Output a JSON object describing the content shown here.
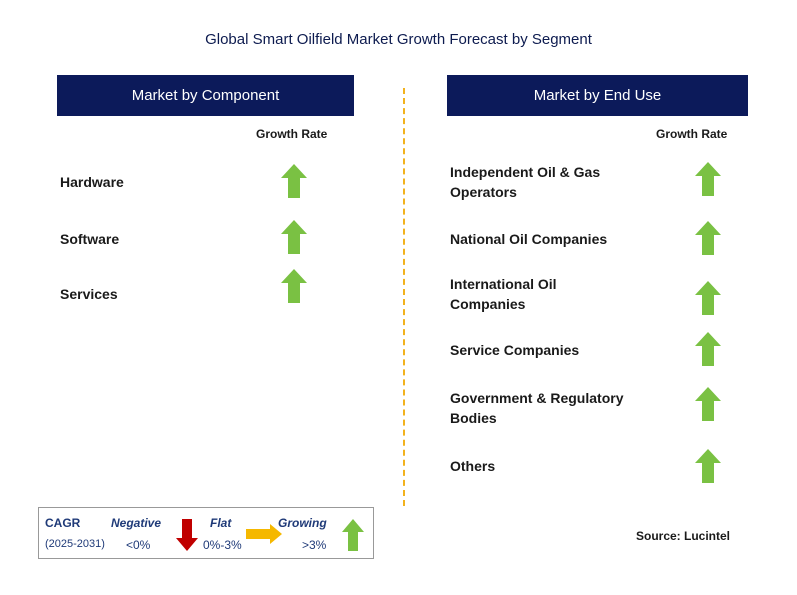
{
  "title": "Global Smart Oilfield Market Growth Forecast by Segment",
  "left_panel": {
    "header": "Market by Component",
    "growth_rate_label": "Growth Rate",
    "items": [
      {
        "label": "Hardware",
        "trend": "growing"
      },
      {
        "label": "Software",
        "trend": "growing"
      },
      {
        "label": "Services",
        "trend": "growing"
      }
    ]
  },
  "right_panel": {
    "header": "Market by End Use",
    "growth_rate_label": "Growth Rate",
    "items": [
      {
        "label_line1": "Independent Oil & Gas",
        "label_line2": "Operators",
        "trend": "growing"
      },
      {
        "label_line1": "National Oil Companies",
        "label_line2": "",
        "trend": "growing"
      },
      {
        "label_line1": "International Oil",
        "label_line2": "Companies",
        "trend": "growing"
      },
      {
        "label_line1": "Service Companies",
        "label_line2": "",
        "trend": "growing"
      },
      {
        "label_line1": "Government & Regulatory",
        "label_line2": "Bodies",
        "trend": "growing"
      },
      {
        "label_line1": "Others",
        "label_line2": "",
        "trend": "growing"
      }
    ]
  },
  "legend": {
    "cagr": "CAGR",
    "period": "(2025-2031)",
    "negative": "Negative",
    "negative_range": "<0%",
    "flat": "Flat",
    "flat_range": "0%-3%",
    "growing": "Growing",
    "growing_range": ">3%"
  },
  "source": "Source: Lucintel",
  "colors": {
    "header_bg": "#0c1a5a",
    "growing_arrow": "#7ac143",
    "negative_arrow": "#c00000",
    "flat_arrow": "#f5b800",
    "divider": "#f2b21d"
  }
}
